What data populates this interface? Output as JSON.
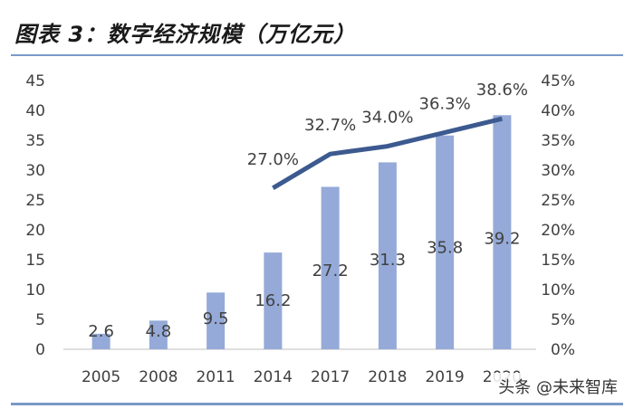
{
  "header": {
    "title": "图表 3：数字经济规模（万亿元）"
  },
  "watermark": "头条 @未来智库",
  "chart_data": {
    "type": "bar",
    "title": "图表 3：数字经济规模（万亿元）",
    "categories": [
      "2005",
      "2008",
      "2011",
      "2014",
      "2017",
      "2018",
      "2019",
      "2020"
    ],
    "series": [
      {
        "type": "bar",
        "axis": "left",
        "values": [
          2.6,
          4.8,
          9.5,
          16.2,
          27.2,
          31.3,
          35.8,
          39.2
        ],
        "labels": [
          "2.6",
          "4.8",
          "9.5",
          "16.2",
          "27.2",
          "31.3",
          "35.8",
          "39.2"
        ]
      },
      {
        "type": "line",
        "axis": "right",
        "x": [
          "2014",
          "2017",
          "2018",
          "2019",
          "2020"
        ],
        "values": [
          27.0,
          32.7,
          34.0,
          36.3,
          38.6
        ],
        "labels": [
          "27.0%",
          "32.7%",
          "34.0%",
          "36.3%",
          "38.6%"
        ]
      }
    ],
    "y_left": {
      "min": 0,
      "max": 45,
      "ticks": [
        "0",
        "5",
        "10",
        "15",
        "20",
        "25",
        "30",
        "35",
        "40",
        "45"
      ]
    },
    "y_right": {
      "min": 0,
      "max": 45,
      "ticks": [
        "0%",
        "5%",
        "10%",
        "15%",
        "20%",
        "25%",
        "30%",
        "35%",
        "40%",
        "45%"
      ]
    },
    "grid": false,
    "colors": {
      "bar": "#95aad8",
      "line": "#3c5a8f",
      "text": "#404040",
      "axis": "#bfbfbf"
    }
  }
}
